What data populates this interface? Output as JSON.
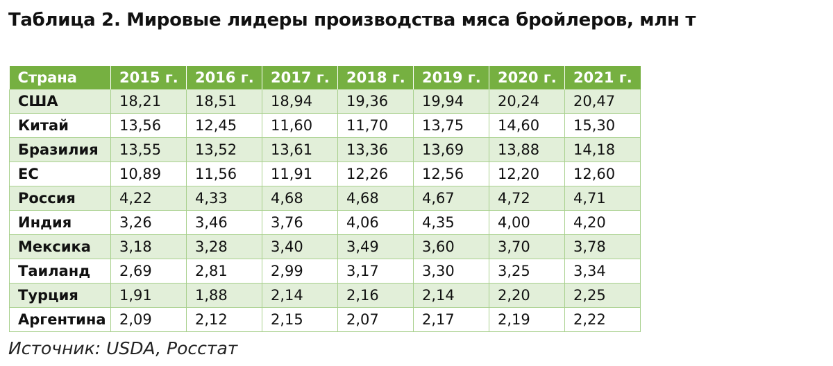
{
  "title": "Таблица 2. Мировые лидеры производства мяса бройлеров, млн т",
  "table": {
    "headers": [
      "Страна",
      "2015 г.",
      "2016 г.",
      "2017 г.",
      "2018 г.",
      "2019 г.",
      "2020 г.",
      "2021 г."
    ],
    "rows": [
      [
        "США",
        "18,21",
        "18,51",
        "18,94",
        "19,36",
        "19,94",
        "20,24",
        "20,47"
      ],
      [
        "Китай",
        "13,56",
        "12,45",
        "11,60",
        "11,70",
        "13,75",
        "14,60",
        "15,30"
      ],
      [
        "Бразилия",
        "13,55",
        "13,52",
        "13,61",
        "13,36",
        "13,69",
        "13,88",
        "14,18"
      ],
      [
        "ЕС",
        "10,89",
        "11,56",
        "11,91",
        "12,26",
        "12,56",
        "12,20",
        "12,60"
      ],
      [
        "Россия",
        "4,22",
        "4,33",
        "4,68",
        "4,68",
        "4,67",
        "4,72",
        "4,71"
      ],
      [
        "Индия",
        "3,26",
        "3,46",
        "3,76",
        "4,06",
        "4,35",
        "4,00",
        "4,20"
      ],
      [
        "Мексика",
        "3,18",
        "3,28",
        "3,40",
        "3,49",
        "3,60",
        "3,70",
        "3,78"
      ],
      [
        "Таиланд",
        "2,69",
        "2,81",
        "2,99",
        "3,17",
        "3,30",
        "3,25",
        "3,34"
      ],
      [
        "Турция",
        "1,91",
        "1,88",
        "2,14",
        "2,16",
        "2,14",
        "2,20",
        "2,25"
      ],
      [
        "Аргентина",
        "2,09",
        "2,12",
        "2,15",
        "2,07",
        "2,17",
        "2,19",
        "2,22"
      ]
    ]
  },
  "source": "Источник: USDA, Росстат",
  "colors": {
    "header_bg": "#76b041",
    "header_text": "#ffffff",
    "band_bg": "#e2efd9",
    "border": "#a8d08d"
  }
}
